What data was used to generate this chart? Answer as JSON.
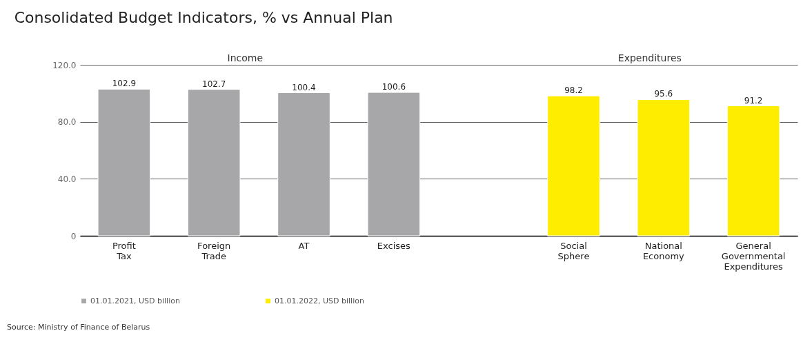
{
  "chart_data": {
    "type": "bar",
    "title": "Consolidated Budget Indicators, % vs Annual Plan",
    "categories": [
      "Profit\nTax",
      "Foreign\nTrade",
      "AT",
      "Excises",
      null,
      "Social\nSphere",
      "National\nEconomy",
      "General\nGovernmental\nExpenditures"
    ],
    "series": [
      {
        "name": "01.01.2021, USD billion",
        "color": "#a7a7a9",
        "values": [
          102.9,
          102.7,
          100.4,
          100.6,
          null,
          null,
          null,
          null
        ]
      },
      {
        "name": "01.01.2022, USD billion",
        "color": "#ffed00",
        "values": [
          null,
          null,
          null,
          null,
          null,
          98.2,
          95.6,
          91.2
        ]
      }
    ],
    "ylim": [
      0,
      120
    ],
    "yticks": [
      0,
      {
        "value": 40,
        "label": "40.0"
      },
      {
        "value": 80,
        "label": "80.0"
      },
      {
        "value": 120,
        "label": "120.0"
      }
    ],
    "grid": "y",
    "legend": "bottom",
    "data_labels": true,
    "annotations": [
      "Income",
      "Expenditures",
      "Source: Ministry of Finance of Belarus"
    ]
  }
}
